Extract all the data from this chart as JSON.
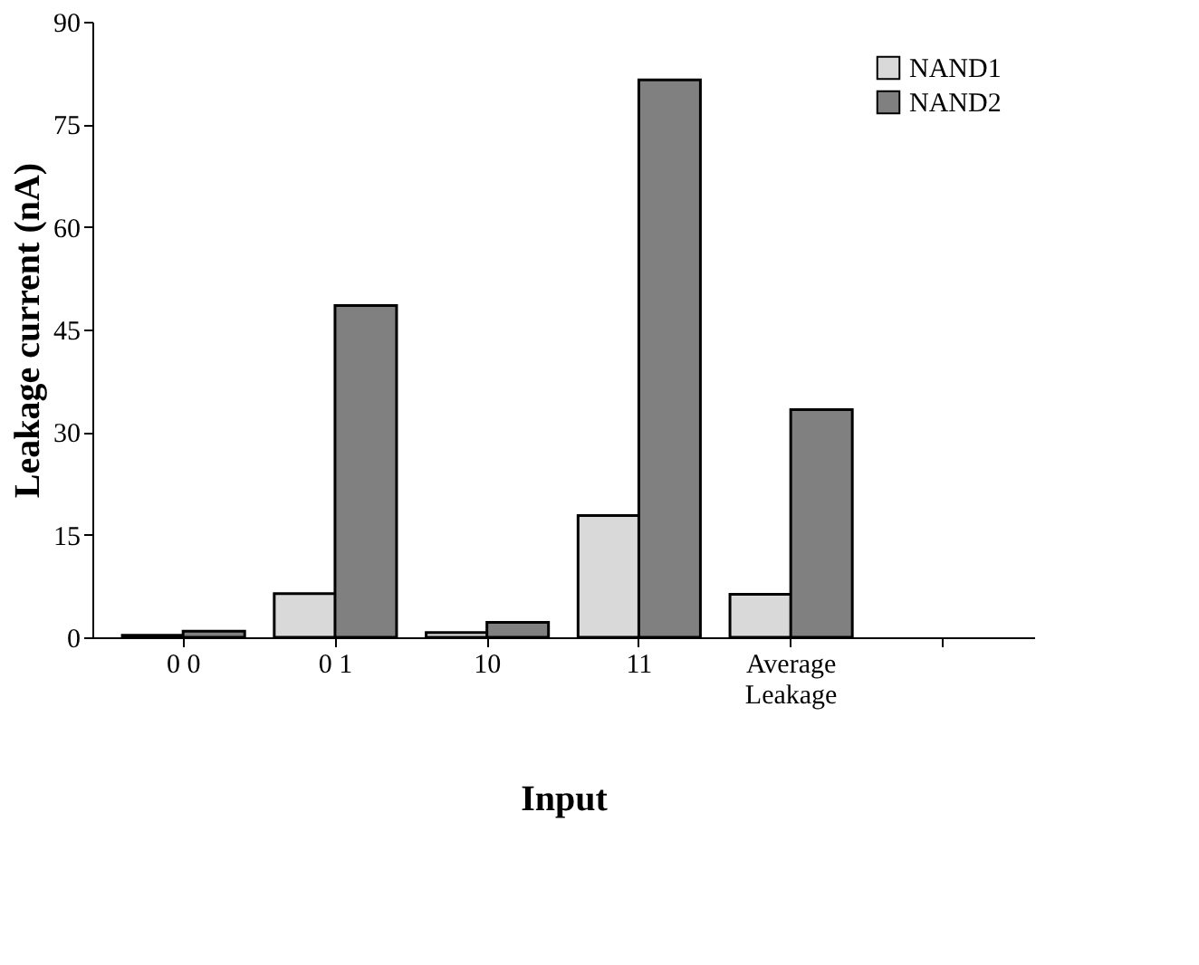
{
  "chart_data": {
    "type": "bar",
    "xlabel": "Input",
    "ylabel": "Leakage current (nA)",
    "categories": [
      "0 0",
      "0 1",
      "10",
      "11",
      "Average Leakage"
    ],
    "series": [
      {
        "name": "NAND1",
        "color": "#d9d9d9",
        "values": [
          0.3,
          6.4,
          0.7,
          17.8,
          6.3
        ]
      },
      {
        "name": "NAND2",
        "color": "#808080",
        "values": [
          0.9,
          48.5,
          2.2,
          81.5,
          33.3
        ]
      }
    ],
    "ylim": [
      0,
      90
    ],
    "yticks": [
      0,
      15,
      30,
      45,
      60,
      75,
      90
    ],
    "grid": false,
    "legend": "top right"
  }
}
